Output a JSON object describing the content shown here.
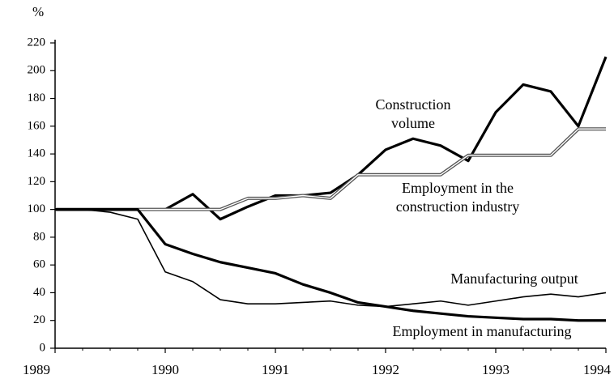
{
  "chart_data": {
    "type": "line",
    "ylabel": "%",
    "xlim": [
      1989,
      1994
    ],
    "xticks": [
      1989,
      1990,
      1991,
      1992,
      1993,
      1994
    ],
    "ylim": [
      0,
      220
    ],
    "yticks": [
      0,
      20,
      40,
      60,
      80,
      100,
      120,
      140,
      160,
      180,
      200,
      220
    ],
    "grid": false,
    "x": [
      1989,
      1989.25,
      1989.5,
      1989.75,
      1990,
      1990.25,
      1990.5,
      1990.75,
      1991,
      1991.25,
      1991.5,
      1991.75,
      1992,
      1992.25,
      1992.5,
      1992.75,
      1993,
      1993.25,
      1993.5,
      1993.75,
      1994
    ],
    "series": [
      {
        "name": "Construction volume",
        "color": "#000000",
        "style": "thick",
        "values": [
          null,
          null,
          null,
          null,
          100,
          111,
          93,
          102,
          110,
          110,
          112,
          125,
          143,
          151,
          146,
          135,
          170,
          190,
          185,
          160,
          210
        ]
      },
      {
        "name": "Employment in the construction industry",
        "color": "#555555",
        "style": "double",
        "values": [
          100,
          100,
          100,
          100,
          100,
          100,
          100,
          108,
          108,
          110,
          108,
          125,
          125,
          125,
          125,
          139,
          139,
          139,
          139,
          158,
          158
        ]
      },
      {
        "name": "Manufacturing output",
        "color": "#000000",
        "style": "thin",
        "values": [
          100,
          100,
          98,
          93,
          55,
          48,
          35,
          32,
          32,
          33,
          34,
          31,
          30,
          32,
          34,
          31,
          34,
          37,
          39,
          37,
          40
        ]
      },
      {
        "name": "Employment in manufacturing",
        "color": "#000000",
        "style": "thick",
        "values": [
          100,
          100,
          100,
          100,
          75,
          68,
          62,
          58,
          54,
          46,
          40,
          33,
          30,
          27,
          25,
          23,
          22,
          21,
          21,
          20,
          20
        ]
      }
    ],
    "annotations": [
      {
        "lines": [
          "Construction",
          "volume"
        ]
      },
      {
        "lines": [
          "Employment in the",
          "construction industry"
        ]
      },
      {
        "lines": [
          "Manufacturing output"
        ]
      },
      {
        "lines": [
          "Employment in manufacturing"
        ]
      }
    ]
  }
}
